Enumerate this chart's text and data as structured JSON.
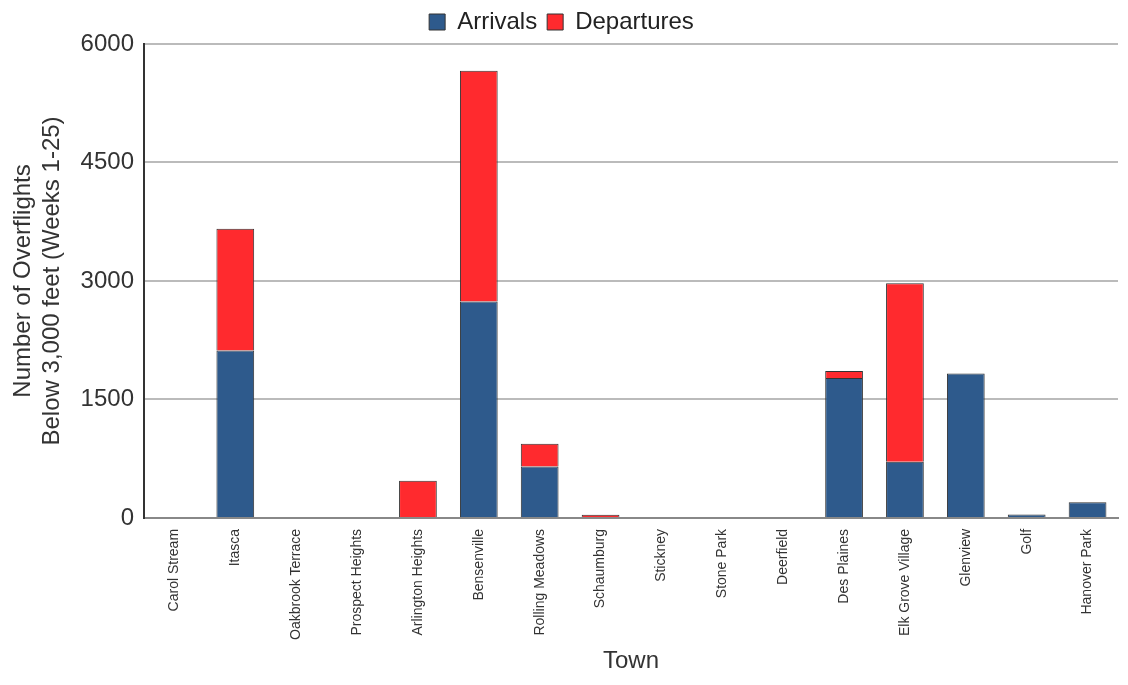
{
  "chart_data": {
    "type": "bar",
    "stacked": true,
    "xlabel": "Town",
    "ylabel": "Number of Overflights\nBelow 3,000 feet (Weeks 1-25)",
    "categories": [
      "Carol Stream",
      "Itasca",
      "Oakbrook Terrace",
      "Prospect Heights",
      "Arlington Heights",
      "Bensenville",
      "Rolling Meadows",
      "Schaumburg",
      "Stickney",
      "Stone Park",
      "Deerfield",
      "Des Plaines",
      "Elk Grove Village",
      "Glenview",
      "Golf",
      "Hanover Park"
    ],
    "series": [
      {
        "name": "Arrivals",
        "color": "#2e5a8c",
        "values": [
          null,
          2120,
          0,
          null,
          0,
          2740,
          650,
          0,
          0,
          0,
          0,
          1770,
          710,
          1830,
          45,
          200
        ]
      },
      {
        "name": "Departures",
        "color": "#ff2a2e",
        "values": [
          0,
          1540,
          0,
          0,
          470,
          2920,
          290,
          40,
          0,
          0,
          0,
          90,
          2260,
          null,
          0,
          0
        ]
      }
    ],
    "ylim": [
      0,
      6000
    ],
    "yticks": [
      0,
      1500,
      3000,
      4500,
      6000
    ],
    "grid": "y",
    "legend": "top"
  }
}
